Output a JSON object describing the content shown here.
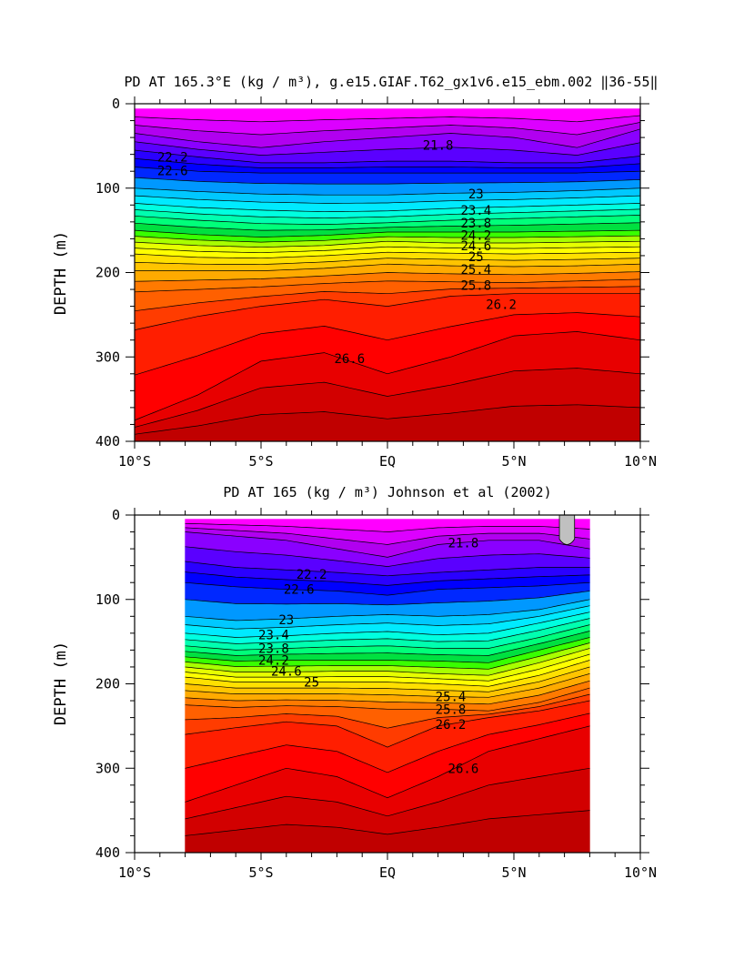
{
  "colors": {
    "bands": [
      "#ff00ff",
      "#dc00ff",
      "#b100f0",
      "#8a00ff",
      "#5a00ff",
      "#2a00ff",
      "#0000ff",
      "#0028ff",
      "#0060ff",
      "#0098ff",
      "#00c8ff",
      "#00eaff",
      "#00ffe0",
      "#00ffb0",
      "#00ff7a",
      "#00e040",
      "#38ff00",
      "#a8ff00",
      "#e6ff00",
      "#ffff00",
      "#ffe000",
      "#ffc400",
      "#ffaa00",
      "#ff9400",
      "#ff7a00",
      "#ff6000",
      "#ff3c00",
      "#ff1e00",
      "#ff0000",
      "#e80000",
      "#d20000",
      "#c00000"
    ],
    "line": "#000000",
    "missing": "#c0c0c0"
  },
  "chart_data": [
    {
      "type": "heatmap",
      "subtype": "filled-contour",
      "title": "PD AT 165.3°E (kg / m³), g.e15.GIAF.T62_gx1v6.e15_ebm.002 ‖36-55‖",
      "ylabel": "DEPTH (m)",
      "xlabel": "",
      "xlim": [
        -10,
        10
      ],
      "ylim": [
        400,
        0
      ],
      "y_inverted": true,
      "data_xlim": [
        -10,
        10
      ],
      "data_ylim": [
        6,
        400
      ],
      "x_ticks": [
        -10,
        -5,
        0,
        5,
        10
      ],
      "x_tick_labels": [
        "10°S",
        "5°S",
        "EQ",
        "5°N",
        "10°N"
      ],
      "y_ticks": [
        0,
        100,
        200,
        300,
        400
      ],
      "y_tick_labels": [
        "0",
        "100",
        "200",
        "300",
        "400"
      ],
      "x": [
        -10,
        -7.5,
        -5,
        -2.5,
        0,
        2.5,
        5,
        7.5,
        10
      ],
      "contours": [
        {
          "level": 21.8,
          "depths": [
            35,
            45,
            52,
            45,
            40,
            35,
            40,
            52,
            30
          ]
        },
        {
          "level": 22.2,
          "depths": [
            55,
            63,
            70,
            70,
            68,
            68,
            70,
            70,
            62
          ]
        },
        {
          "level": 22.6,
          "depths": [
            75,
            80,
            82,
            82,
            82,
            82,
            82,
            82,
            80
          ]
        },
        {
          "level": 23,
          "depths": [
            100,
            104,
            107,
            108,
            108,
            106,
            105,
            103,
            100
          ]
        },
        {
          "level": 23.4,
          "depths": [
            118,
            123,
            126,
            128,
            127,
            124,
            122,
            120,
            118
          ]
        },
        {
          "level": 23.8,
          "depths": [
            133,
            138,
            142,
            143,
            141,
            138,
            136,
            134,
            132
          ]
        },
        {
          "level": 24.2,
          "depths": [
            150,
            155,
            158,
            156,
            152,
            152,
            152,
            151,
            150
          ]
        },
        {
          "level": 24.6,
          "depths": [
            164,
            168,
            170,
            168,
            163,
            165,
            165,
            164,
            163
          ]
        },
        {
          "level": 25,
          "depths": [
            178,
            182,
            183,
            180,
            176,
            177,
            178,
            177,
            176
          ]
        },
        {
          "level": 25.4,
          "depths": [
            198,
            198,
            198,
            195,
            190,
            192,
            193,
            192,
            190
          ]
        },
        {
          "level": 25.8,
          "depths": [
            223,
            220,
            217,
            213,
            210,
            211,
            212,
            210,
            208
          ]
        },
        {
          "level": 26.2,
          "depths": [
            268,
            252,
            240,
            232,
            240,
            228,
            225,
            225,
            225
          ]
        },
        {
          "level": 26.6,
          "depths": [
            375,
            345,
            305,
            295,
            320,
            300,
            275,
            270,
            280
          ]
        }
      ],
      "labels": [
        {
          "text": "21.8",
          "x": 2.0,
          "depth": 49
        },
        {
          "text": "22.2",
          "x": -8.5,
          "depth": 63
        },
        {
          "text": "22.6",
          "x": -8.5,
          "depth": 79
        },
        {
          "text": "23",
          "x": 3.5,
          "depth": 107
        },
        {
          "text": "23.4",
          "x": 3.5,
          "depth": 126
        },
        {
          "text": "23.8",
          "x": 3.5,
          "depth": 141
        },
        {
          "text": "24.2",
          "x": 3.5,
          "depth": 156
        },
        {
          "text": "24.6",
          "x": 3.5,
          "depth": 168
        },
        {
          "text": "25",
          "x": 3.5,
          "depth": 181
        },
        {
          "text": "25.4",
          "x": 3.5,
          "depth": 196
        },
        {
          "text": "25.8",
          "x": 3.5,
          "depth": 215
        },
        {
          "text": "26.2",
          "x": 4.5,
          "depth": 238
        },
        {
          "text": "26.6",
          "x": -1.5,
          "depth": 302
        }
      ]
    },
    {
      "type": "heatmap",
      "subtype": "filled-contour",
      "title": "PD AT 165 (kg / m³) Johnson et al (2002)",
      "ylabel": "DEPTH (m)",
      "xlabel": "",
      "xlim": [
        -10,
        10
      ],
      "ylim": [
        400,
        0
      ],
      "y_inverted": true,
      "data_xlim": [
        -8,
        8
      ],
      "data_ylim": [
        5,
        400
      ],
      "x_ticks": [
        -10,
        -5,
        0,
        5,
        10
      ],
      "x_tick_labels": [
        "10°S",
        "5°S",
        "EQ",
        "5°N",
        "10°N"
      ],
      "y_ticks": [
        0,
        100,
        200,
        300,
        400
      ],
      "y_tick_labels": [
        "0",
        "100",
        "200",
        "300",
        "400"
      ],
      "x": [
        -8,
        -6,
        -4,
        -2,
        0,
        2,
        4,
        6,
        8
      ],
      "contours": [
        {
          "level": 21.8,
          "depths": [
            20,
            25,
            30,
            40,
            50,
            35,
            30,
            30,
            40
          ]
        },
        {
          "level": 22.2,
          "depths": [
            55,
            62,
            65,
            68,
            72,
            68,
            65,
            62,
            62
          ]
        },
        {
          "level": 22.6,
          "depths": [
            80,
            85,
            88,
            90,
            95,
            88,
            86,
            84,
            80
          ]
        },
        {
          "level": 23,
          "depths": [
            120,
            125,
            123,
            120,
            118,
            120,
            118,
            112,
            100
          ]
        },
        {
          "level": 23.4,
          "depths": [
            140,
            145,
            143,
            140,
            138,
            142,
            140,
            128,
            115
          ]
        },
        {
          "level": 23.8,
          "depths": [
            155,
            160,
            158,
            156,
            155,
            158,
            158,
            145,
            130
          ]
        },
        {
          "level": 24.2,
          "depths": [
            168,
            173,
            172,
            172,
            172,
            173,
            175,
            160,
            145
          ]
        },
        {
          "level": 24.6,
          "depths": [
            180,
            186,
            186,
            185,
            185,
            188,
            190,
            175,
            158
          ]
        },
        {
          "level": 25,
          "depths": [
            192,
            198,
            198,
            198,
            198,
            200,
            203,
            190,
            172
          ]
        },
        {
          "level": 25.4,
          "depths": [
            208,
            212,
            212,
            212,
            213,
            215,
            216,
            205,
            188
          ]
        },
        {
          "level": 25.8,
          "depths": [
            225,
            228,
            226,
            227,
            230,
            230,
            232,
            222,
            205
          ]
        },
        {
          "level": 26.2,
          "depths": [
            260,
            252,
            245,
            250,
            275,
            250,
            240,
            232,
            220
          ]
        },
        {
          "level": 26.6,
          "depths": [
            340,
            320,
            300,
            310,
            335,
            310,
            280,
            265,
            250
          ]
        }
      ],
      "missing_region": {
        "x": [
          6.8,
          7.4
        ],
        "depth": [
          0,
          35
        ]
      },
      "labels": [
        {
          "text": "21.8",
          "x": 3.0,
          "depth": 33
        },
        {
          "text": "22.2",
          "x": -3.0,
          "depth": 70
        },
        {
          "text": "22.6",
          "x": -3.5,
          "depth": 88
        },
        {
          "text": "23",
          "x": -4.0,
          "depth": 124
        },
        {
          "text": "23.4",
          "x": -4.5,
          "depth": 142
        },
        {
          "text": "23.8",
          "x": -4.5,
          "depth": 158
        },
        {
          "text": "24.2",
          "x": -4.5,
          "depth": 172
        },
        {
          "text": "24.6",
          "x": -4.0,
          "depth": 185
        },
        {
          "text": "25",
          "x": -3.0,
          "depth": 198
        },
        {
          "text": "25.4",
          "x": 2.5,
          "depth": 215
        },
        {
          "text": "25.8",
          "x": 2.5,
          "depth": 230
        },
        {
          "text": "26.2",
          "x": 2.5,
          "depth": 248
        },
        {
          "text": "26.6",
          "x": 3.0,
          "depth": 300
        }
      ]
    }
  ]
}
